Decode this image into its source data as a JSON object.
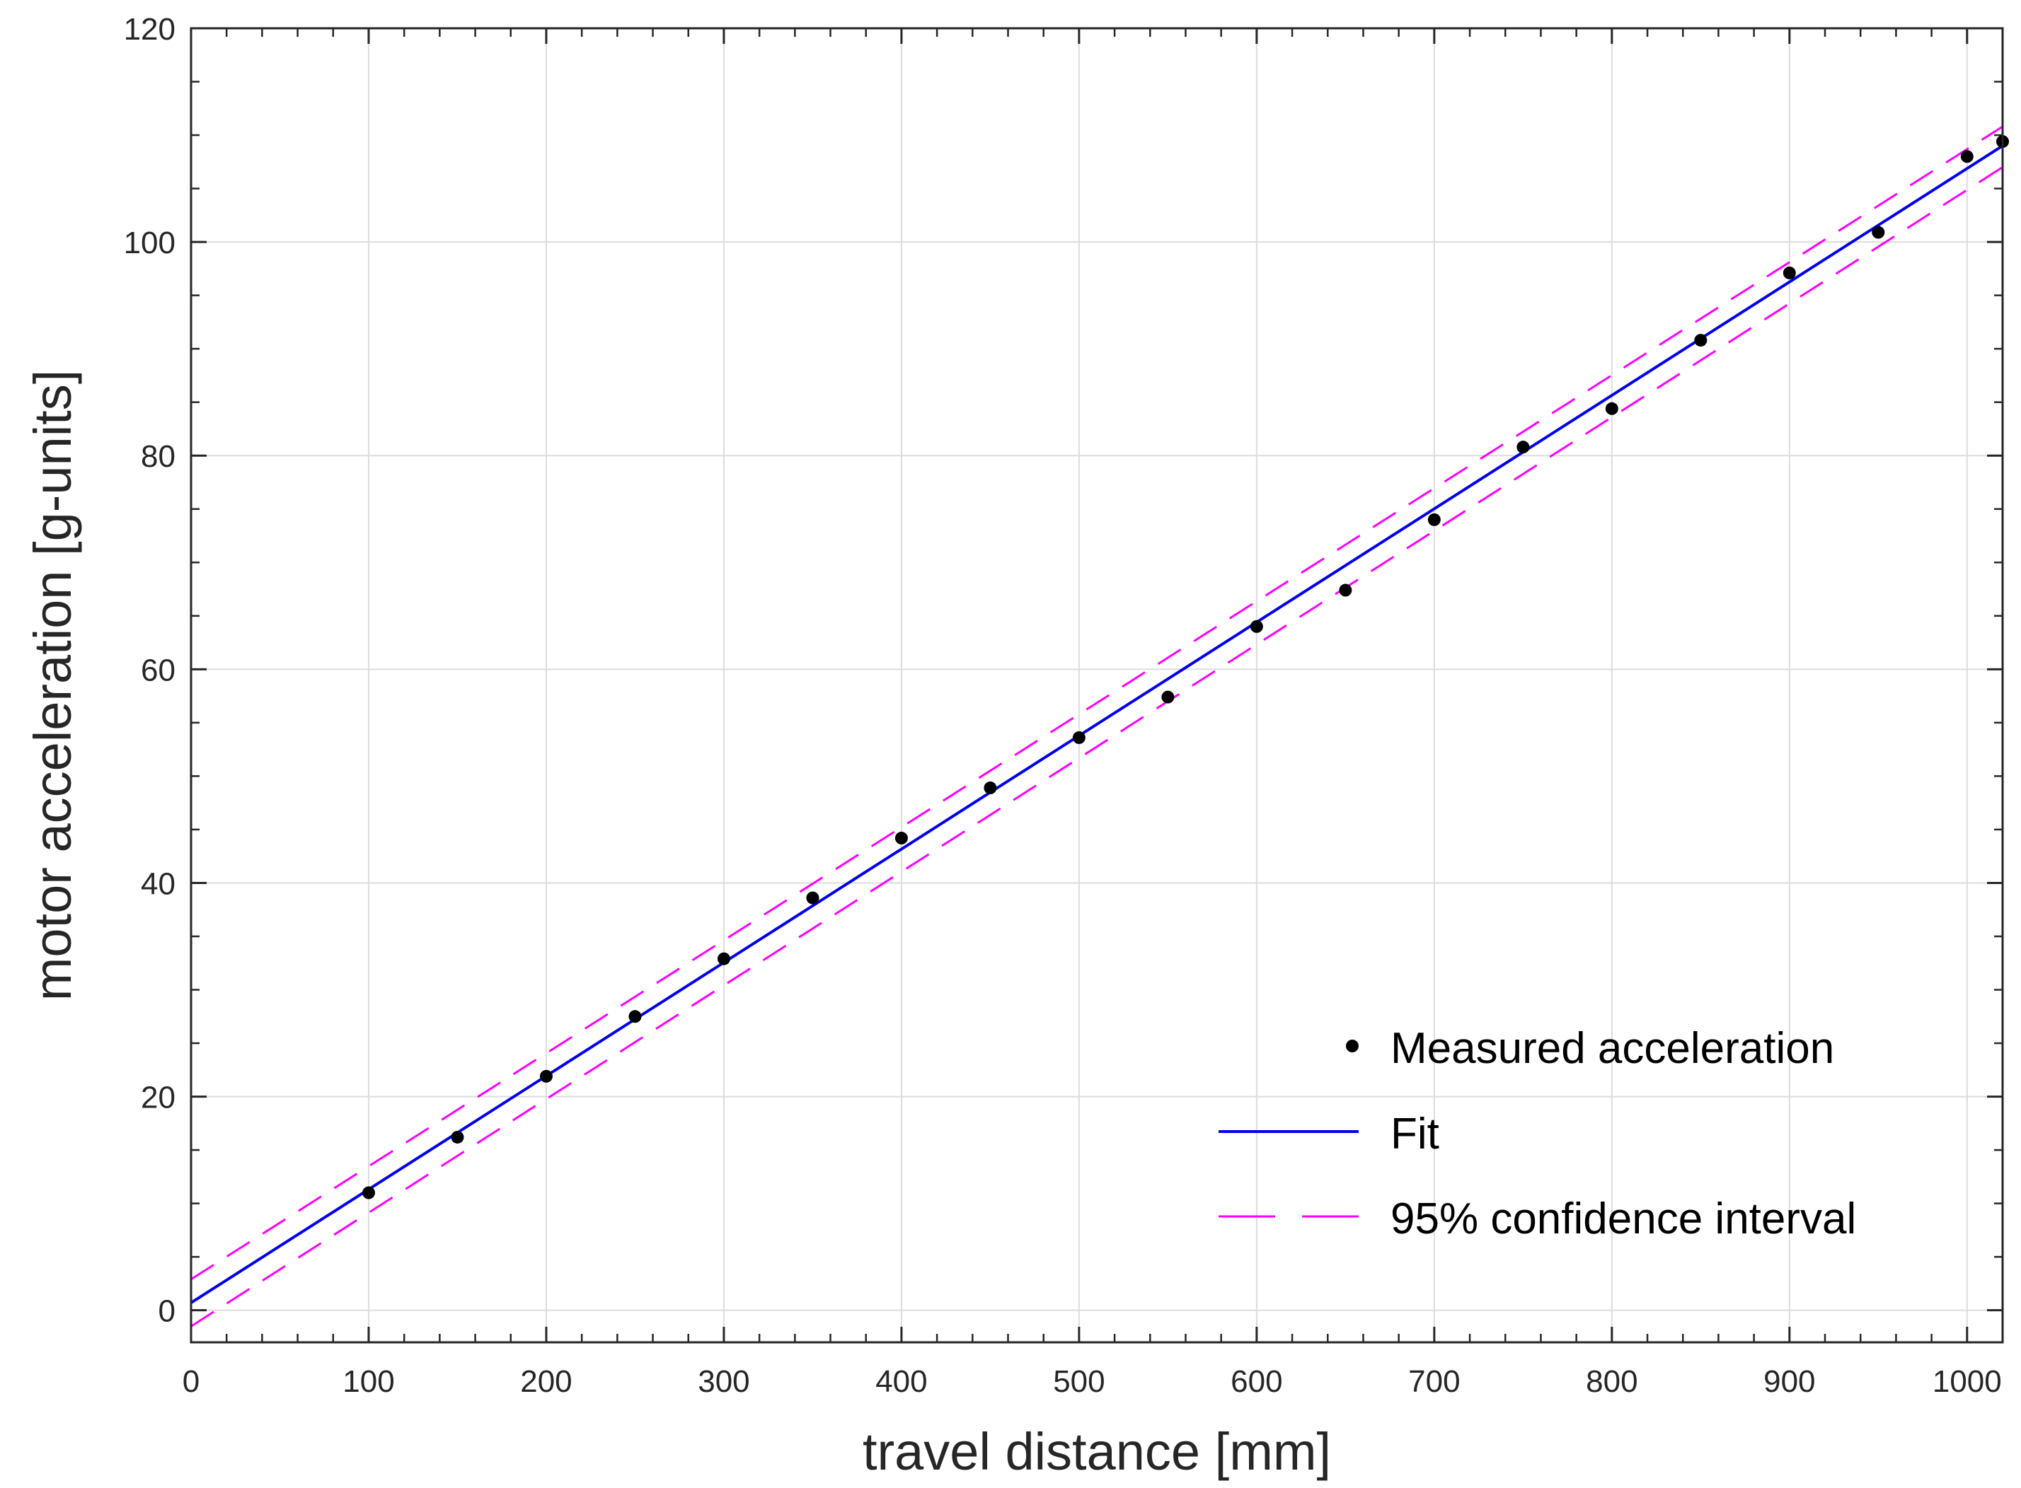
{
  "chart_data": {
    "type": "scatter",
    "title": "",
    "xlabel": "travel distance [mm]",
    "ylabel": "motor acceleration [g-units]",
    "xlim": [
      0,
      1020
    ],
    "ylim": [
      -3,
      120
    ],
    "grid": true,
    "legend_position": "bottom-right",
    "x_ticks": [
      0,
      100,
      200,
      300,
      400,
      500,
      600,
      700,
      800,
      900,
      1000
    ],
    "y_ticks": [
      0,
      20,
      40,
      60,
      80,
      100,
      120
    ],
    "x_tick_labels": [
      "0",
      "100",
      "200",
      "300",
      "400",
      "500",
      "600",
      "700",
      "800",
      "900",
      "1000"
    ],
    "y_tick_labels": [
      "0",
      "20",
      "40",
      "60",
      "80",
      "100",
      "120"
    ],
    "series": [
      {
        "name": "Measured acceleration",
        "kind": "scatter",
        "color": "#000000",
        "x": [
          100,
          150,
          200,
          250,
          300,
          350,
          400,
          450,
          500,
          550,
          600,
          650,
          700,
          750,
          800,
          850,
          900,
          950,
          1000,
          1020
        ],
        "y": [
          11.0,
          16.2,
          21.9,
          27.5,
          32.9,
          38.6,
          44.2,
          48.9,
          53.6,
          57.4,
          64.0,
          67.4,
          74.0,
          80.8,
          84.4,
          90.8,
          97.1,
          100.9,
          108.0,
          109.4
        ]
      },
      {
        "name": "Fit",
        "kind": "line",
        "color": "#0000ee",
        "x": [
          0,
          1020
        ],
        "y": [
          0.7,
          109.0
        ]
      },
      {
        "name": "95% confidence interval",
        "kind": "dashed-band",
        "color": "#ff00ff",
        "x": [
          0,
          1020
        ],
        "upper": [
          2.9,
          110.8
        ],
        "lower": [
          -1.5,
          107.0
        ]
      }
    ]
  }
}
